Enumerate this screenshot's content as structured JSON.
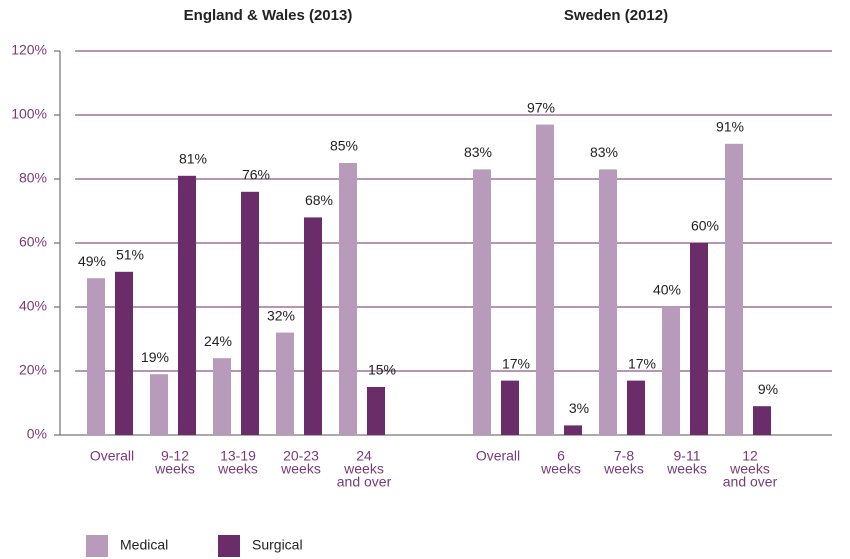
{
  "chart_data": {
    "type": "bar",
    "ylim": [
      0,
      120
    ],
    "yticks": [
      {
        "value": 0,
        "label": "0%"
      },
      {
        "value": 20,
        "label": "20%"
      },
      {
        "value": 40,
        "label": "40%"
      },
      {
        "value": 60,
        "label": "60%"
      },
      {
        "value": 80,
        "label": "80%"
      },
      {
        "value": 100,
        "label": "100%"
      },
      {
        "value": 120,
        "label": "120%"
      }
    ],
    "grid": true,
    "legend": "bottom",
    "series": [
      {
        "name": "Medical",
        "color": "#b89bbb"
      },
      {
        "name": "Surgical",
        "color": "#6b2d69"
      }
    ],
    "panels": [
      {
        "title": "England & Wales (2013)",
        "categories": [
          [
            "Overall"
          ],
          [
            "9-12",
            "weeks"
          ],
          [
            "13-19",
            "weeks"
          ],
          [
            "20-23",
            "weeks"
          ],
          [
            "24",
            "weeks",
            "and over"
          ]
        ],
        "values": [
          [
            49,
            19,
            24,
            32,
            85
          ],
          [
            51,
            81,
            76,
            68,
            15
          ]
        ],
        "value_labels": [
          [
            "49%",
            "19%",
            "24%",
            "32%",
            "85%"
          ],
          [
            "51%",
            "81%",
            "76%",
            "68%",
            "15%"
          ]
        ]
      },
      {
        "title": "Sweden (2012)",
        "categories": [
          [
            "Overall"
          ],
          [
            "6",
            "weeks"
          ],
          [
            "7-8",
            "weeks"
          ],
          [
            "9-11",
            "weeks"
          ],
          [
            "12",
            "weeks",
            "and over"
          ]
        ],
        "values": [
          [
            83,
            97,
            83,
            40,
            91
          ],
          [
            17,
            3,
            17,
            60,
            9
          ]
        ],
        "value_labels": [
          [
            "83%",
            "97%",
            "83%",
            "40%",
            "91%"
          ],
          [
            "17%",
            "3%",
            "17%",
            "60%",
            "9%"
          ]
        ]
      }
    ]
  }
}
